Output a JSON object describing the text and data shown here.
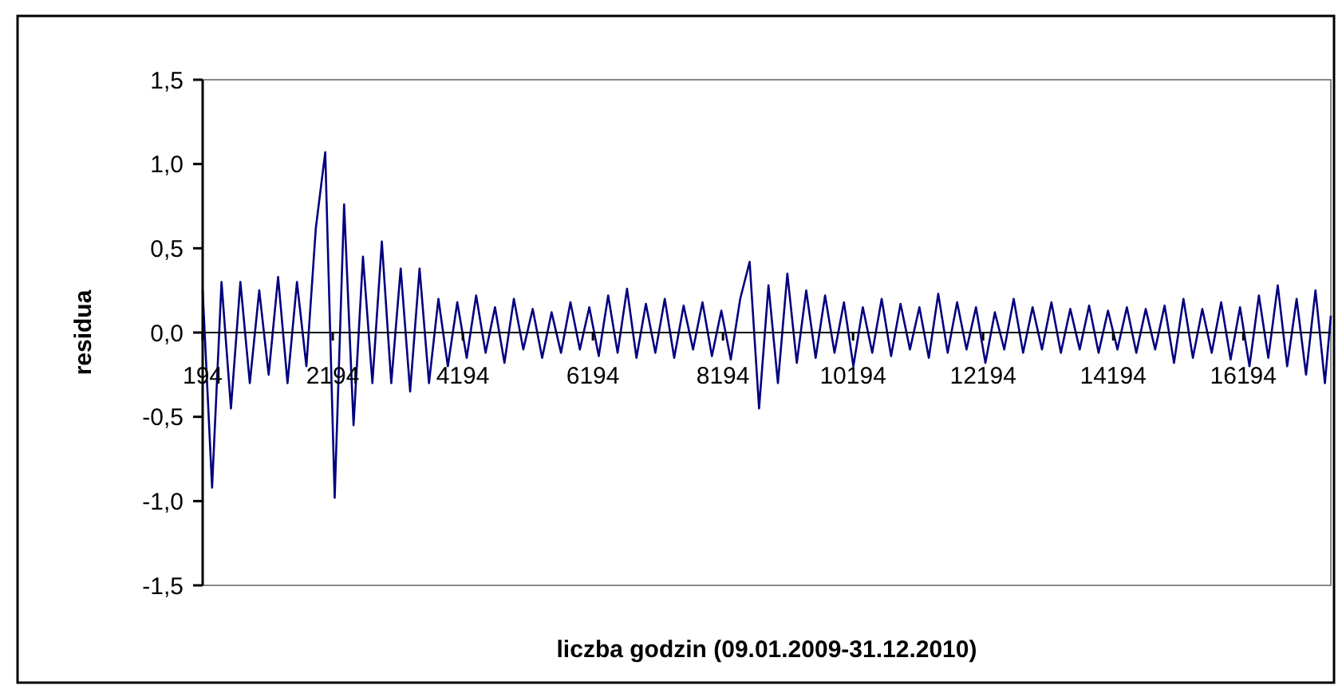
{
  "chart_data": {
    "type": "line",
    "xlabel": "liczba godzin (09.01.2009-31.12.2010)",
    "ylabel": "residua",
    "xlim": [
      194,
      17540
    ],
    "xticks": [
      194,
      2194,
      4194,
      6194,
      8194,
      10194,
      12194,
      14194,
      16194
    ],
    "ylim": [
      -1.5,
      1.5
    ],
    "yticks": [
      {
        "value": -1.5,
        "label": "-1,5"
      },
      {
        "value": -1,
        "label": "-1,0"
      },
      {
        "value": -0.5,
        "label": "-0,5"
      },
      {
        "value": 0,
        "label": "0,0"
      },
      {
        "value": 0.5,
        "label": "0,5"
      },
      {
        "value": 1,
        "label": "1,0"
      },
      {
        "value": 1.5,
        "label": "1,5"
      }
    ],
    "series": [
      {
        "color": "#000080",
        "x": [
          194,
          339,
          484,
          629,
          774,
          919,
          1064,
          1209,
          1354,
          1499,
          1644,
          1789,
          1934,
          2079,
          2224,
          2369,
          2514,
          2659,
          2804,
          2949,
          3094,
          3239,
          3384,
          3529,
          3674,
          3819,
          3964,
          4109,
          4254,
          4399,
          4544,
          4689,
          4834,
          4979,
          5124,
          5269,
          5414,
          5559,
          5704,
          5849,
          5994,
          6139,
          6284,
          6429,
          6574,
          6719,
          6864,
          7009,
          7154,
          7299,
          7444,
          7589,
          7734,
          7879,
          8024,
          8169,
          8314,
          8459,
          8604,
          8749,
          8894,
          9039,
          9184,
          9329,
          9474,
          9619,
          9764,
          9909,
          10054,
          10199,
          10344,
          10489,
          10634,
          10779,
          10924,
          11069,
          11214,
          11359,
          11504,
          11649,
          11794,
          11939,
          12084,
          12229,
          12374,
          12519,
          12664,
          12809,
          12954,
          13099,
          13244,
          13389,
          13534,
          13679,
          13824,
          13969,
          14114,
          14259,
          14404,
          14549,
          14694,
          14839,
          14984,
          15129,
          15274,
          15419,
          15564,
          15709,
          15854,
          15999,
          16144,
          16289,
          16434,
          16579,
          16724,
          16869,
          17014,
          17159,
          17304,
          17449,
          17540
        ],
        "values": [
          0.25,
          -0.92,
          0.3,
          -0.45,
          0.3,
          -0.3,
          0.25,
          -0.25,
          0.33,
          -0.3,
          0.3,
          -0.2,
          0.62,
          1.07,
          -0.98,
          0.76,
          -0.55,
          0.45,
          -0.3,
          0.54,
          -0.3,
          0.38,
          -0.35,
          0.38,
          -0.3,
          0.2,
          -0.2,
          0.18,
          -0.15,
          0.22,
          -0.12,
          0.15,
          -0.18,
          0.2,
          -0.1,
          0.14,
          -0.15,
          0.12,
          -0.12,
          0.18,
          -0.1,
          0.15,
          -0.14,
          0.22,
          -0.12,
          0.26,
          -0.15,
          0.17,
          -0.12,
          0.2,
          -0.15,
          0.16,
          -0.1,
          0.18,
          -0.14,
          0.13,
          -0.16,
          0.2,
          0.42,
          -0.45,
          0.28,
          -0.3,
          0.35,
          -0.18,
          0.25,
          -0.15,
          0.22,
          -0.12,
          0.18,
          -0.2,
          0.15,
          -0.12,
          0.2,
          -0.14,
          0.17,
          -0.1,
          0.15,
          -0.15,
          0.23,
          -0.12,
          0.18,
          -0.1,
          0.15,
          -0.18,
          0.12,
          -0.1,
          0.2,
          -0.12,
          0.15,
          -0.1,
          0.18,
          -0.12,
          0.14,
          -0.1,
          0.16,
          -0.12,
          0.13,
          -0.1,
          0.15,
          -0.12,
          0.14,
          -0.1,
          0.16,
          -0.18,
          0.2,
          -0.15,
          0.14,
          -0.12,
          0.18,
          -0.16,
          0.15,
          -0.2,
          0.22,
          -0.15,
          0.28,
          -0.2,
          0.2,
          -0.25,
          0.25,
          -0.3,
          0.1
        ]
      }
    ]
  }
}
